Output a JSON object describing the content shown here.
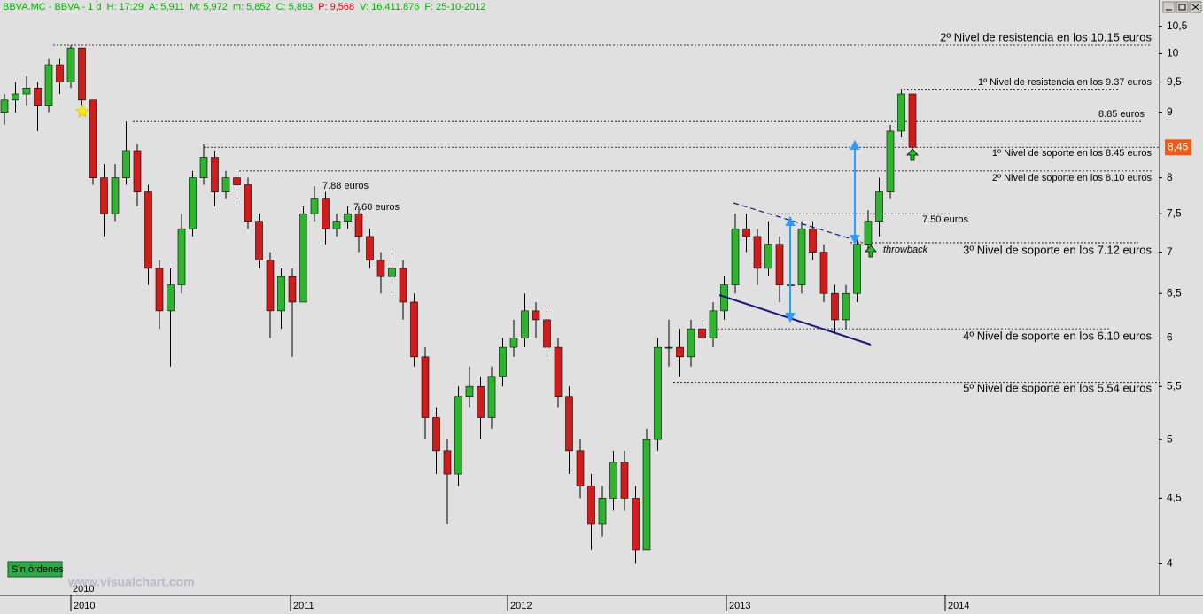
{
  "header": {
    "symbol": "BBVA.MC - BBVA - 1 d",
    "color": "#00b000",
    "fields": [
      {
        "label": "H:",
        "value": "17:29",
        "color": "#00b000"
      },
      {
        "label": "A:",
        "value": "5,911",
        "color": "#00b000"
      },
      {
        "label": "M:",
        "value": "5,972",
        "color": "#00b000"
      },
      {
        "label": "m:",
        "value": "5,852",
        "color": "#00b000"
      },
      {
        "label": "C:",
        "value": "5,893",
        "color": "#00b000"
      },
      {
        "label": "P:",
        "value": "9,568",
        "color": "#e00000"
      },
      {
        "label": "V:",
        "value": "16.411.876",
        "color": "#00b000"
      },
      {
        "label": "F:",
        "value": "25-10-2012",
        "color": "#00b000"
      }
    ]
  },
  "status": "Sin órdenes",
  "watermark": "www.visualchart.com",
  "chart_data": {
    "type": "candlestick",
    "log_scale": true,
    "up_color": "#2db52d",
    "down_color": "#d01c1c",
    "open": [
      9.0,
      9.2,
      9.3,
      9.4,
      9.1,
      9.8,
      9.5,
      10.1,
      9.2,
      8.0,
      7.5,
      8.0,
      8.4,
      7.8,
      6.8,
      6.3,
      6.6,
      7.3,
      8.0,
      8.3,
      7.8,
      8.0,
      7.9,
      7.4,
      6.9,
      6.3,
      6.7,
      6.4,
      7.5,
      7.7,
      7.3,
      7.4,
      7.5,
      7.2,
      6.9,
      6.7,
      6.8,
      6.4,
      5.8,
      5.2,
      4.9,
      4.7,
      5.4,
      5.5,
      5.2,
      5.6,
      5.9,
      6.0,
      6.3,
      6.2,
      5.9,
      5.4,
      4.9,
      4.6,
      4.3,
      4.5,
      4.8,
      4.5,
      4.1,
      5.0,
      5.9,
      5.9,
      5.8,
      6.1,
      6.0,
      6.3,
      6.6,
      7.3,
      7.2,
      6.8,
      7.1,
      6.6,
      6.6,
      7.3,
      7.0,
      6.5,
      6.2,
      6.5,
      7.1,
      7.4,
      7.8,
      8.7,
      9.3
    ],
    "high": [
      9.3,
      9.5,
      9.6,
      9.5,
      9.9,
      9.9,
      10.15,
      10.1,
      9.2,
      8.2,
      8.2,
      8.85,
      8.5,
      7.9,
      6.9,
      6.8,
      7.5,
      8.1,
      8.5,
      8.4,
      8.1,
      8.1,
      8.0,
      7.5,
      7.0,
      6.8,
      6.8,
      7.6,
      7.88,
      7.8,
      7.5,
      7.6,
      7.6,
      7.3,
      7.0,
      7.0,
      6.9,
      6.5,
      5.9,
      5.3,
      5.0,
      5.5,
      5.7,
      5.6,
      5.7,
      6.0,
      6.2,
      6.5,
      6.4,
      6.3,
      6.0,
      5.5,
      5.0,
      4.7,
      4.6,
      4.9,
      4.9,
      4.6,
      5.1,
      6.0,
      6.2,
      6.1,
      6.2,
      6.2,
      6.4,
      6.7,
      7.5,
      7.5,
      7.3,
      7.4,
      7.2,
      6.8,
      7.4,
      7.4,
      7.1,
      6.6,
      6.6,
      7.2,
      7.55,
      8.0,
      8.8,
      9.37,
      9.3
    ],
    "low": [
      8.8,
      9.0,
      9.1,
      8.7,
      9.0,
      9.3,
      9.4,
      9.0,
      7.9,
      7.2,
      7.4,
      7.9,
      7.6,
      6.6,
      6.1,
      5.7,
      6.5,
      7.2,
      7.9,
      7.6,
      7.7,
      7.7,
      7.3,
      6.8,
      6.0,
      6.1,
      5.8,
      6.4,
      7.4,
      7.1,
      7.2,
      7.3,
      7.0,
      6.8,
      6.5,
      6.5,
      6.2,
      5.7,
      5.0,
      4.7,
      4.3,
      4.6,
      5.3,
      5.0,
      5.1,
      5.5,
      5.8,
      5.9,
      6.0,
      5.8,
      5.3,
      4.7,
      4.5,
      4.1,
      4.2,
      4.4,
      4.4,
      4.0,
      4.1,
      4.9,
      5.7,
      5.6,
      5.7,
      5.9,
      5.9,
      6.2,
      6.5,
      7.0,
      6.6,
      6.7,
      6.4,
      6.3,
      6.5,
      6.9,
      6.4,
      6.05,
      6.1,
      6.4,
      7.0,
      7.2,
      7.7,
      8.6,
      8.3
    ],
    "close": [
      9.2,
      9.3,
      9.4,
      9.1,
      9.8,
      9.5,
      10.1,
      9.2,
      8.0,
      7.5,
      8.0,
      8.4,
      7.8,
      6.8,
      6.3,
      6.6,
      7.3,
      8.0,
      8.3,
      7.8,
      8.0,
      7.9,
      7.4,
      6.9,
      6.3,
      6.7,
      6.4,
      7.5,
      7.7,
      7.3,
      7.4,
      7.5,
      7.2,
      6.9,
      6.7,
      6.8,
      6.4,
      5.8,
      5.2,
      4.9,
      4.7,
      5.4,
      5.5,
      5.2,
      5.6,
      5.9,
      6.0,
      6.3,
      6.2,
      5.9,
      5.4,
      4.9,
      4.6,
      4.3,
      4.5,
      4.8,
      4.5,
      4.1,
      5.0,
      5.9,
      5.9,
      5.8,
      6.1,
      6.0,
      6.3,
      6.6,
      7.3,
      7.2,
      6.8,
      7.1,
      6.6,
      6.6,
      7.3,
      7.0,
      6.5,
      6.2,
      6.5,
      7.1,
      7.4,
      7.8,
      8.7,
      9.3,
      8.45
    ],
    "ylim": [
      3.78,
      10.8
    ],
    "yticks": [
      4,
      {
        "value": 4.5,
        "label": "4,5"
      },
      5,
      {
        "value": 5.5,
        "label": "5,5"
      },
      6,
      {
        "value": 6.5,
        "label": "6,5"
      },
      7,
      {
        "value": 7.5,
        "label": "7,5"
      },
      8,
      9,
      {
        "value": 9.5,
        "label": "9,5"
      },
      10,
      {
        "value": 10.5,
        "label": "10,5"
      }
    ],
    "xlim": [
      -0.4,
      104.24
    ],
    "xticks": [
      {
        "value": 6,
        "label": "2010"
      },
      {
        "value": 25.84,
        "label": "2011"
      },
      {
        "value": 45.44,
        "label": "2012"
      },
      {
        "value": 65.2,
        "label": "2013"
      },
      {
        "value": 84.96,
        "label": "2014"
      }
    ],
    "corner_label": "2010",
    "current_price": {
      "value": 8.45,
      "label": "8,45"
    },
    "levels": [
      {
        "value": 10.15,
        "label": "2º Nivel de resistencia en los 10.15 euros"
      },
      {
        "value": 9.37,
        "label": "1º Nivel de resistencia en los 9.37 euros"
      },
      {
        "value": 8.85,
        "label": "8.85 euros"
      },
      {
        "value": 8.45,
        "label": "1º Nivel de soporte en los 8.45 euros"
      },
      {
        "value": 8.1,
        "label": "2º Nivel de soporte en los 8.10 euros"
      },
      {
        "value": 7.5,
        "label": "7.50 euros"
      },
      {
        "value": 7.12,
        "label": "3º Nivel de soporte en los 7.12 euros"
      },
      {
        "value": 6.1,
        "label": "4º Nivel de soporte en los 6.10 euros"
      },
      {
        "value": 5.54,
        "label": "5º Nivel de soporte en los 5.54 euros"
      }
    ],
    "annotations": [
      "7.88 euros",
      "7.60 euros",
      "throwback"
    ]
  }
}
